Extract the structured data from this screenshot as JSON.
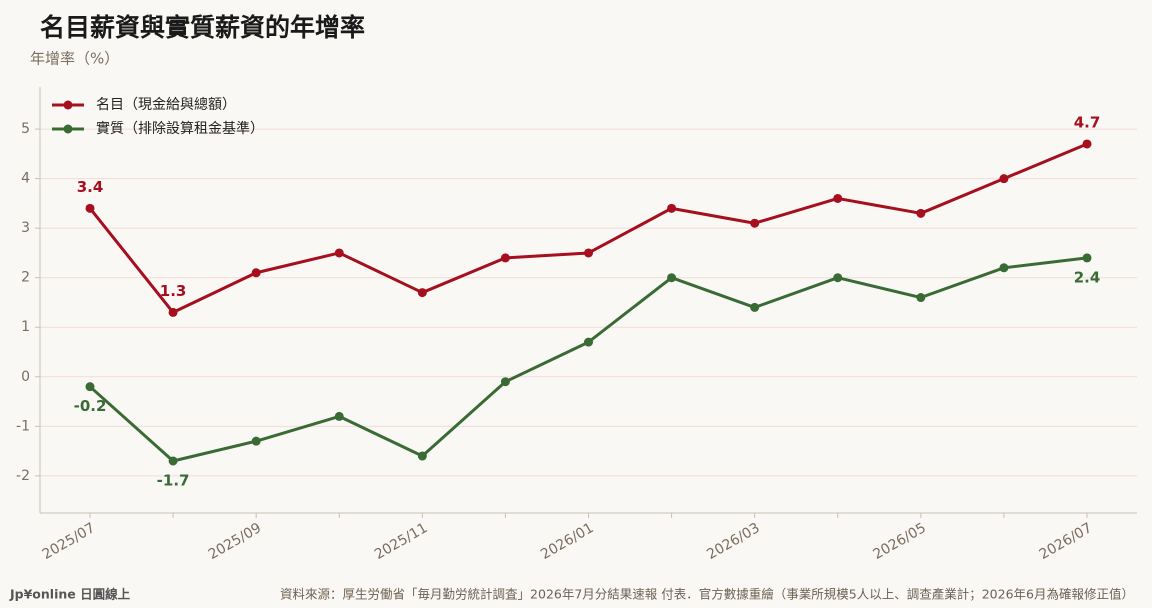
{
  "chart_data": {
    "type": "line",
    "title": "名目薪資與實質薪資的年增率",
    "y_label": "年增率（%）",
    "source": "資料來源：厚生労働省「毎月勤労統計調査」2026年7月分結果速報 付表．官方數據重繪（事業所規模5人以上、調查產業計；2026年6月為確報修正值）",
    "brand": "Jp¥online 日圓線上",
    "categories": [
      "2025/07",
      null,
      "2025/09",
      null,
      "2025/11",
      null,
      "2026/01",
      null,
      "2026/03",
      null,
      "2026/05",
      null,
      "2026/07"
    ],
    "series": [
      {
        "name": "名目（現金給與總額）",
        "color": "#a50f1e",
        "values": [
          3.4,
          1.3,
          2.1,
          2.5,
          1.7,
          2.4,
          2.5,
          3.4,
          3.1,
          3.6,
          3.3,
          4.0,
          4.7
        ],
        "value_labels": [
          "3.4",
          "1.3",
          null,
          null,
          null,
          null,
          null,
          null,
          null,
          null,
          null,
          null,
          "4.7"
        ]
      },
      {
        "name": "實質（排除設算租金基準）",
        "color": "#3a6b35",
        "values": [
          -0.2,
          -1.7,
          -1.3,
          -0.8,
          -1.6,
          -0.1,
          0.7,
          2.0,
          1.4,
          2.0,
          1.6,
          2.2,
          2.4
        ],
        "value_labels": [
          "-0.2",
          "-1.7",
          null,
          null,
          null,
          null,
          null,
          null,
          null,
          null,
          null,
          null,
          "2.4"
        ]
      }
    ],
    "ylim": [
      -2.75,
      5.85
    ],
    "yticks": [
      -2,
      -1,
      0,
      1,
      2,
      3,
      4,
      5
    ],
    "grid": true,
    "legend": "upper left"
  }
}
